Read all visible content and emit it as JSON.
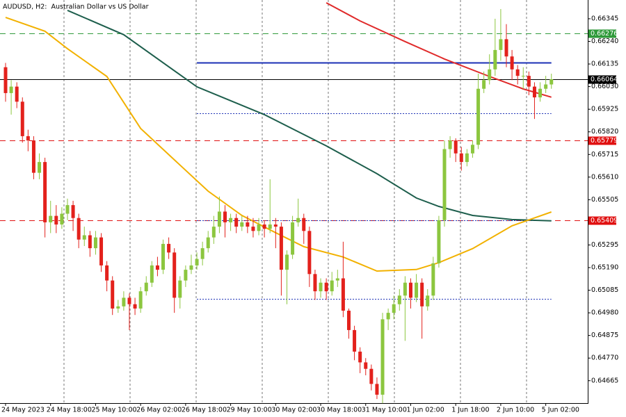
{
  "chart_data": {
    "type": "candlestick",
    "title": "AUDUSD, H2:  Australian Dollar vs US Dollar",
    "categories": [
      "24 May 2023",
      null,
      null,
      null,
      null,
      null,
      null,
      null,
      "24 May 18:00",
      null,
      null,
      null,
      null,
      null,
      null,
      null,
      "25 May 10:00",
      null,
      null,
      null,
      null,
      null,
      null,
      null,
      "26 May 02:00",
      null,
      null,
      null,
      null,
      null,
      null,
      null,
      "26 May 18:00",
      null,
      null,
      null,
      null,
      null,
      null,
      null,
      "29 May 10:00",
      null,
      null,
      null,
      null,
      null,
      null,
      null,
      "30 May 02:00",
      null,
      null,
      null,
      null,
      null,
      null,
      null,
      "30 May 18:00",
      null,
      null,
      null,
      null,
      null,
      null,
      null,
      "31 May 10:00",
      null,
      null,
      null,
      null,
      null,
      null,
      null,
      "1 Jun 02:00",
      null,
      null,
      null,
      null,
      null,
      null,
      null,
      "1 Jun 18:00",
      null,
      null,
      null,
      null,
      null,
      null,
      null,
      "2 Jun 10:00",
      null,
      null,
      null,
      null,
      null,
      null,
      null,
      "5 Jun 02:00",
      null
    ],
    "open": [
      0.6612,
      0.66,
      0.6603,
      0.6596,
      0.658,
      0.6578,
      0.6563,
      0.6568,
      0.654,
      0.6543,
      0.6539,
      0.6544,
      0.6548,
      0.6542,
      0.6532,
      0.6534,
      0.6528,
      0.6533,
      0.652,
      0.6513,
      0.65,
      0.6501,
      0.6505,
      0.6502,
      0.65,
      0.6508,
      0.6512,
      0.652,
      0.6518,
      0.653,
      0.6526,
      0.6505,
      0.6513,
      0.6518,
      0.652,
      0.6523,
      0.6528,
      0.6533,
      0.6538,
      0.6545,
      0.654,
      0.6542,
      0.6538,
      0.654,
      0.6538,
      0.6536,
      0.6539,
      0.6537,
      0.6539,
      0.6538,
      0.6518,
      0.6525,
      0.654,
      0.6542,
      0.6536,
      0.6516,
      0.6508,
      0.6512,
      0.6508,
      0.6513,
      0.6514,
      0.6499,
      0.649,
      0.648,
      0.6475,
      0.6472,
      0.6465,
      0.646,
      0.6495,
      0.6498,
      0.6502,
      0.6506,
      0.6512,
      0.6505,
      0.6512,
      0.6501,
      0.6506,
      0.6521,
      0.6541,
      0.6574,
      0.6578,
      0.6572,
      0.6568,
      0.6572,
      0.6576,
      0.6602,
      0.6606,
      0.6611,
      0.662,
      0.6625,
      0.6617,
      0.6611,
      0.6608,
      0.6608,
      0.6603,
      0.6598,
      0.6602,
      0.6604
    ],
    "high": [
      0.6614,
      0.6606,
      0.6605,
      0.6598,
      0.6583,
      0.658,
      0.6572,
      0.657,
      0.655,
      0.6548,
      0.6547,
      0.6551,
      0.655,
      0.6544,
      0.6538,
      0.6536,
      0.6536,
      0.6535,
      0.6522,
      0.6515,
      0.6504,
      0.6508,
      0.6507,
      0.6505,
      0.651,
      0.6515,
      0.6522,
      0.6524,
      0.6532,
      0.6533,
      0.6528,
      0.6515,
      0.652,
      0.6525,
      0.6526,
      0.6531,
      0.6536,
      0.6543,
      0.6552,
      0.6548,
      0.6544,
      0.6544,
      0.6543,
      0.6543,
      0.6542,
      0.6542,
      0.6541,
      0.656,
      0.6542,
      0.654,
      0.6527,
      0.6543,
      0.6551,
      0.6544,
      0.6538,
      0.6518,
      0.6514,
      0.6514,
      0.6517,
      0.6518,
      0.6531,
      0.65,
      0.6492,
      0.6482,
      0.6477,
      0.6474,
      0.6468,
      0.6498,
      0.65,
      0.6506,
      0.6509,
      0.6515,
      0.6514,
      0.6516,
      0.6514,
      0.6509,
      0.6524,
      0.6543,
      0.6578,
      0.658,
      0.6579,
      0.6575,
      0.6574,
      0.6578,
      0.6609,
      0.661,
      0.6618,
      0.66345,
      0.6639,
      0.6632,
      0.662,
      0.6613,
      0.6612,
      0.661,
      0.6605,
      0.6605,
      0.6608,
      0.6609
    ],
    "low": [
      0.6596,
      0.659,
      0.6593,
      0.6577,
      0.6573,
      0.656,
      0.656,
      0.6533,
      0.6535,
      0.6535,
      0.6537,
      0.6541,
      0.6536,
      0.6528,
      0.6529,
      0.6524,
      0.6525,
      0.6517,
      0.6508,
      0.6497,
      0.6498,
      0.6499,
      0.649,
      0.6497,
      0.6498,
      0.6506,
      0.651,
      0.6515,
      0.6516,
      0.6523,
      0.6498,
      0.65,
      0.651,
      0.6516,
      0.6518,
      0.652,
      0.6526,
      0.653,
      0.6535,
      0.6533,
      0.6536,
      0.6535,
      0.6536,
      0.6535,
      0.6533,
      0.6534,
      0.6533,
      0.6535,
      0.6528,
      0.6506,
      0.6502,
      0.6523,
      0.6538,
      0.653,
      0.651,
      0.6504,
      0.6505,
      0.6504,
      0.6506,
      0.651,
      0.6496,
      0.6486,
      0.6476,
      0.647,
      0.6469,
      0.6462,
      0.6458,
      0.6456,
      0.649,
      0.6495,
      0.6499,
      0.6485,
      0.65,
      0.6503,
      0.6486,
      0.6499,
      0.6504,
      0.6519,
      0.6538,
      0.657,
      0.6568,
      0.6564,
      0.6566,
      0.657,
      0.6574,
      0.66,
      0.6604,
      0.6608,
      0.6615,
      0.6612,
      0.6606,
      0.6604,
      0.6602,
      0.6599,
      0.6588,
      0.6596,
      0.66,
      0.6602
    ],
    "close": [
      0.66,
      0.6603,
      0.6596,
      0.658,
      0.6578,
      0.6563,
      0.6568,
      0.654,
      0.6543,
      0.6539,
      0.6544,
      0.6548,
      0.6542,
      0.6532,
      0.6534,
      0.6528,
      0.6533,
      0.652,
      0.6513,
      0.65,
      0.6501,
      0.6505,
      0.6502,
      0.65,
      0.6508,
      0.6512,
      0.652,
      0.6518,
      0.653,
      0.6526,
      0.6505,
      0.6513,
      0.6518,
      0.652,
      0.6523,
      0.6528,
      0.6533,
      0.6538,
      0.6545,
      0.654,
      0.6542,
      0.6538,
      0.654,
      0.6538,
      0.6536,
      0.6539,
      0.6537,
      0.6539,
      0.6538,
      0.6518,
      0.6525,
      0.654,
      0.6542,
      0.6536,
      0.6516,
      0.6508,
      0.6512,
      0.6508,
      0.6513,
      0.6514,
      0.6499,
      0.649,
      0.648,
      0.6475,
      0.6472,
      0.6465,
      0.646,
      0.6495,
      0.6498,
      0.6502,
      0.6506,
      0.6512,
      0.6505,
      0.6512,
      0.6501,
      0.6506,
      0.6521,
      0.6541,
      0.6574,
      0.6578,
      0.6572,
      0.6568,
      0.6572,
      0.6576,
      0.6602,
      0.6606,
      0.6611,
      0.662,
      0.6625,
      0.6617,
      0.6611,
      0.6608,
      0.6608,
      0.6603,
      0.6598,
      0.6602,
      0.6604,
      0.66064
    ],
    "up_color": "#8cc63f",
    "down_color": "#e3211c",
    "series": [
      {
        "color": "#1d5e4c",
        "x": [
          11,
          21,
          34,
          46,
          57,
          66,
          73,
          77,
          83,
          90,
          97
        ],
        "values": [
          0.66384,
          0.66271,
          0.66029,
          0.659,
          0.65755,
          0.65626,
          0.65513,
          0.65474,
          0.65432,
          0.65413,
          0.65407
        ]
      },
      {
        "color": "#f2b100",
        "x": [
          0,
          7,
          11,
          18,
          24,
          30,
          36,
          42,
          48,
          53,
          60,
          66,
          73,
          77,
          83,
          90,
          97
        ],
        "values": [
          0.66351,
          0.66287,
          0.66206,
          0.66077,
          0.65836,
          0.6569,
          0.65545,
          0.65432,
          0.65352,
          0.65287,
          0.65239,
          0.65174,
          0.65181,
          0.65213,
          0.65278,
          0.65384,
          0.65448
        ]
      },
      {
        "color": "#e02a2a",
        "x": [
          57,
          63,
          71,
          78,
          86,
          92,
          97
        ],
        "values": [
          0.66419,
          0.66335,
          0.66239,
          0.66158,
          0.66077,
          0.66019,
          0.65981
        ]
      }
    ],
    "levels": [
      {
        "value": 0.66276,
        "color": "#2f9a3a",
        "style": "dashed",
        "badge": true
      },
      {
        "value": 0.66064,
        "color": "#000000",
        "style": "solid",
        "badge": true
      },
      {
        "value": 0.65779,
        "color": "#e01010",
        "style": "dashed",
        "badge": true
      },
      {
        "value": 0.65409,
        "color": "#e01010",
        "style": "dashed",
        "badge": true
      },
      {
        "value": 0.66142,
        "color": "#1a2fb5",
        "style": "solid",
        "from": 34
      },
      {
        "value": 0.65906,
        "color": "#1a2fb5",
        "style": "dotted",
        "from": 34
      },
      {
        "value": 0.6541,
        "color": "#1a2fb5",
        "style": "dotted",
        "from": 34
      },
      {
        "value": 0.65045,
        "color": "#1a2fb5",
        "style": "dotted",
        "from": 34
      }
    ],
    "ylim": [
      0.64561,
      0.66432
    ],
    "yticks": [
      0.66345,
      {
        "value": 0.6624,
        "label": "0.66240"
      },
      0.66135,
      {
        "value": 0.6603,
        "label": "0.66030"
      },
      0.65925,
      {
        "value": 0.6582,
        "label": "0.65820"
      },
      0.65715,
      {
        "value": 0.6561,
        "label": "0.65610"
      },
      0.65505,
      0.65295,
      {
        "value": 0.6519,
        "label": "0.65190"
      },
      0.65085,
      {
        "value": 0.6498,
        "label": "0.64980"
      },
      0.64875,
      {
        "value": 0.6477,
        "label": "0.64770"
      },
      0.64665
    ]
  }
}
